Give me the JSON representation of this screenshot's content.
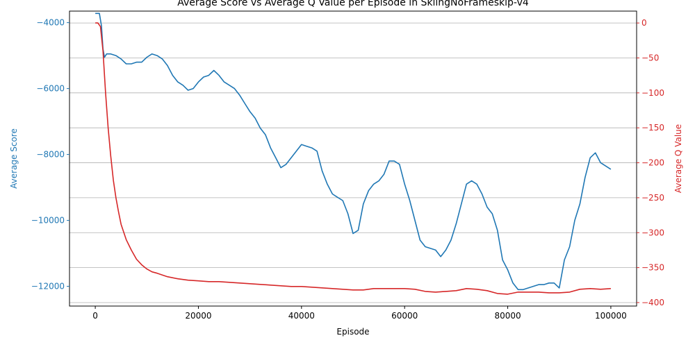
{
  "chart_data": {
    "type": "line",
    "title": "Average Score vs Average Q Value per Episode in SkiingNoFrameskip-v4",
    "xlabel": "Episode",
    "ylabel_left": "Average Score",
    "ylabel_right": "Average Q Value",
    "xlim": [
      -5000,
      105000
    ],
    "ylim_left": [
      -12600,
      -3650
    ],
    "ylim_right": [
      -405,
      17
    ],
    "x_ticks": [
      0,
      20000,
      40000,
      60000,
      80000,
      100000
    ],
    "y_left_ticks": [
      -12000,
      -10000,
      -8000,
      -6000,
      -4000
    ],
    "y_right_ticks": [
      -400,
      -350,
      -300,
      -250,
      -200,
      -150,
      -100,
      -50,
      0
    ],
    "grid": "horizontal lines at right-axis ticks",
    "legend": "none",
    "colors": {
      "score": "#1f77b4",
      "q_value": "#d62728",
      "grid": "#b0b0b0"
    },
    "series": [
      {
        "name": "Average Score",
        "axis": "left",
        "color": "#1f77b4",
        "x": [
          0,
          800,
          1200,
          1500,
          1800,
          2200,
          3000,
          4000,
          5000,
          6000,
          7000,
          8000,
          9000,
          10000,
          11000,
          12000,
          13000,
          14000,
          15000,
          16000,
          17000,
          18000,
          19000,
          20000,
          21000,
          22000,
          23000,
          24000,
          25000,
          26000,
          27000,
          28000,
          29000,
          30000,
          31000,
          32000,
          33000,
          34000,
          35000,
          36000,
          37000,
          38000,
          39000,
          40000,
          41000,
          42000,
          43000,
          44000,
          45000,
          46000,
          47000,
          48000,
          49000,
          50000,
          51000,
          52000,
          53000,
          54000,
          55000,
          56000,
          57000,
          58000,
          59000,
          60000,
          61000,
          62000,
          63000,
          64000,
          65000,
          66000,
          67000,
          68000,
          69000,
          70000,
          71000,
          72000,
          73000,
          74000,
          75000,
          76000,
          77000,
          78000,
          79000,
          80000,
          81000,
          82000,
          83000,
          84000,
          85000,
          86000,
          87000,
          88000,
          89000,
          90000,
          91000,
          92000,
          93000,
          94000,
          95000,
          96000,
          97000,
          98000,
          99000,
          100000
        ],
        "values": [
          -3720,
          -3720,
          -4100,
          -4800,
          -5050,
          -4950,
          -4950,
          -5000,
          -5100,
          -5250,
          -5250,
          -5200,
          -5200,
          -5050,
          -4950,
          -5000,
          -5100,
          -5300,
          -5600,
          -5800,
          -5900,
          -6050,
          -6000,
          -5800,
          -5650,
          -5600,
          -5450,
          -5600,
          -5800,
          -5900,
          -6000,
          -6200,
          -6450,
          -6700,
          -6900,
          -7200,
          -7400,
          -7800,
          -8100,
          -8400,
          -8300,
          -8100,
          -7900,
          -7700,
          -7750,
          -7800,
          -7900,
          -8500,
          -8900,
          -9200,
          -9300,
          -9400,
          -9800,
          -10400,
          -10300,
          -9500,
          -9100,
          -8900,
          -8800,
          -8600,
          -8200,
          -8200,
          -8300,
          -8900,
          -9400,
          -10000,
          -10600,
          -10800,
          -10850,
          -10900,
          -11100,
          -10900,
          -10600,
          -10100,
          -9500,
          -8900,
          -8800,
          -8900,
          -9200,
          -9600,
          -9800,
          -10300,
          -11200,
          -11500,
          -11900,
          -12100,
          -12100,
          -12050,
          -12000,
          -11950,
          -11950,
          -11900,
          -11900,
          -12050,
          -11200,
          -10800,
          -10000,
          -9500,
          -8700,
          -8100,
          -7950,
          -8250,
          -8350,
          -8450
        ]
      },
      {
        "name": "Average Q Value",
        "axis": "right",
        "color": "#d62728",
        "x": [
          0,
          500,
          1000,
          1500,
          2000,
          2500,
          3000,
          3500,
          4000,
          4500,
          5000,
          6000,
          7000,
          8000,
          9000,
          10000,
          11000,
          12000,
          14000,
          16000,
          18000,
          20000,
          22000,
          24000,
          26000,
          28000,
          30000,
          32000,
          34000,
          36000,
          38000,
          40000,
          42000,
          44000,
          46000,
          48000,
          50000,
          52000,
          54000,
          56000,
          58000,
          60000,
          62000,
          64000,
          66000,
          68000,
          70000,
          72000,
          74000,
          76000,
          78000,
          80000,
          82000,
          84000,
          86000,
          88000,
          90000,
          92000,
          94000,
          96000,
          98000,
          100000
        ],
        "values": [
          0,
          0,
          -5,
          -40,
          -100,
          -150,
          -190,
          -225,
          -250,
          -270,
          -288,
          -310,
          -325,
          -338,
          -346,
          -352,
          -356,
          -358,
          -363,
          -366,
          -368,
          -369,
          -370,
          -370,
          -371,
          -372,
          -373,
          -374,
          -375,
          -376,
          -377,
          -377,
          -378,
          -379,
          -380,
          -381,
          -382,
          -382,
          -380,
          -380,
          -380,
          -380,
          -381,
          -384,
          -385,
          -384,
          -383,
          -380,
          -381,
          -383,
          -387,
          -388,
          -385,
          -385,
          -385,
          -386,
          -386,
          -385,
          -381,
          -380,
          -381,
          -380
        ]
      }
    ]
  }
}
